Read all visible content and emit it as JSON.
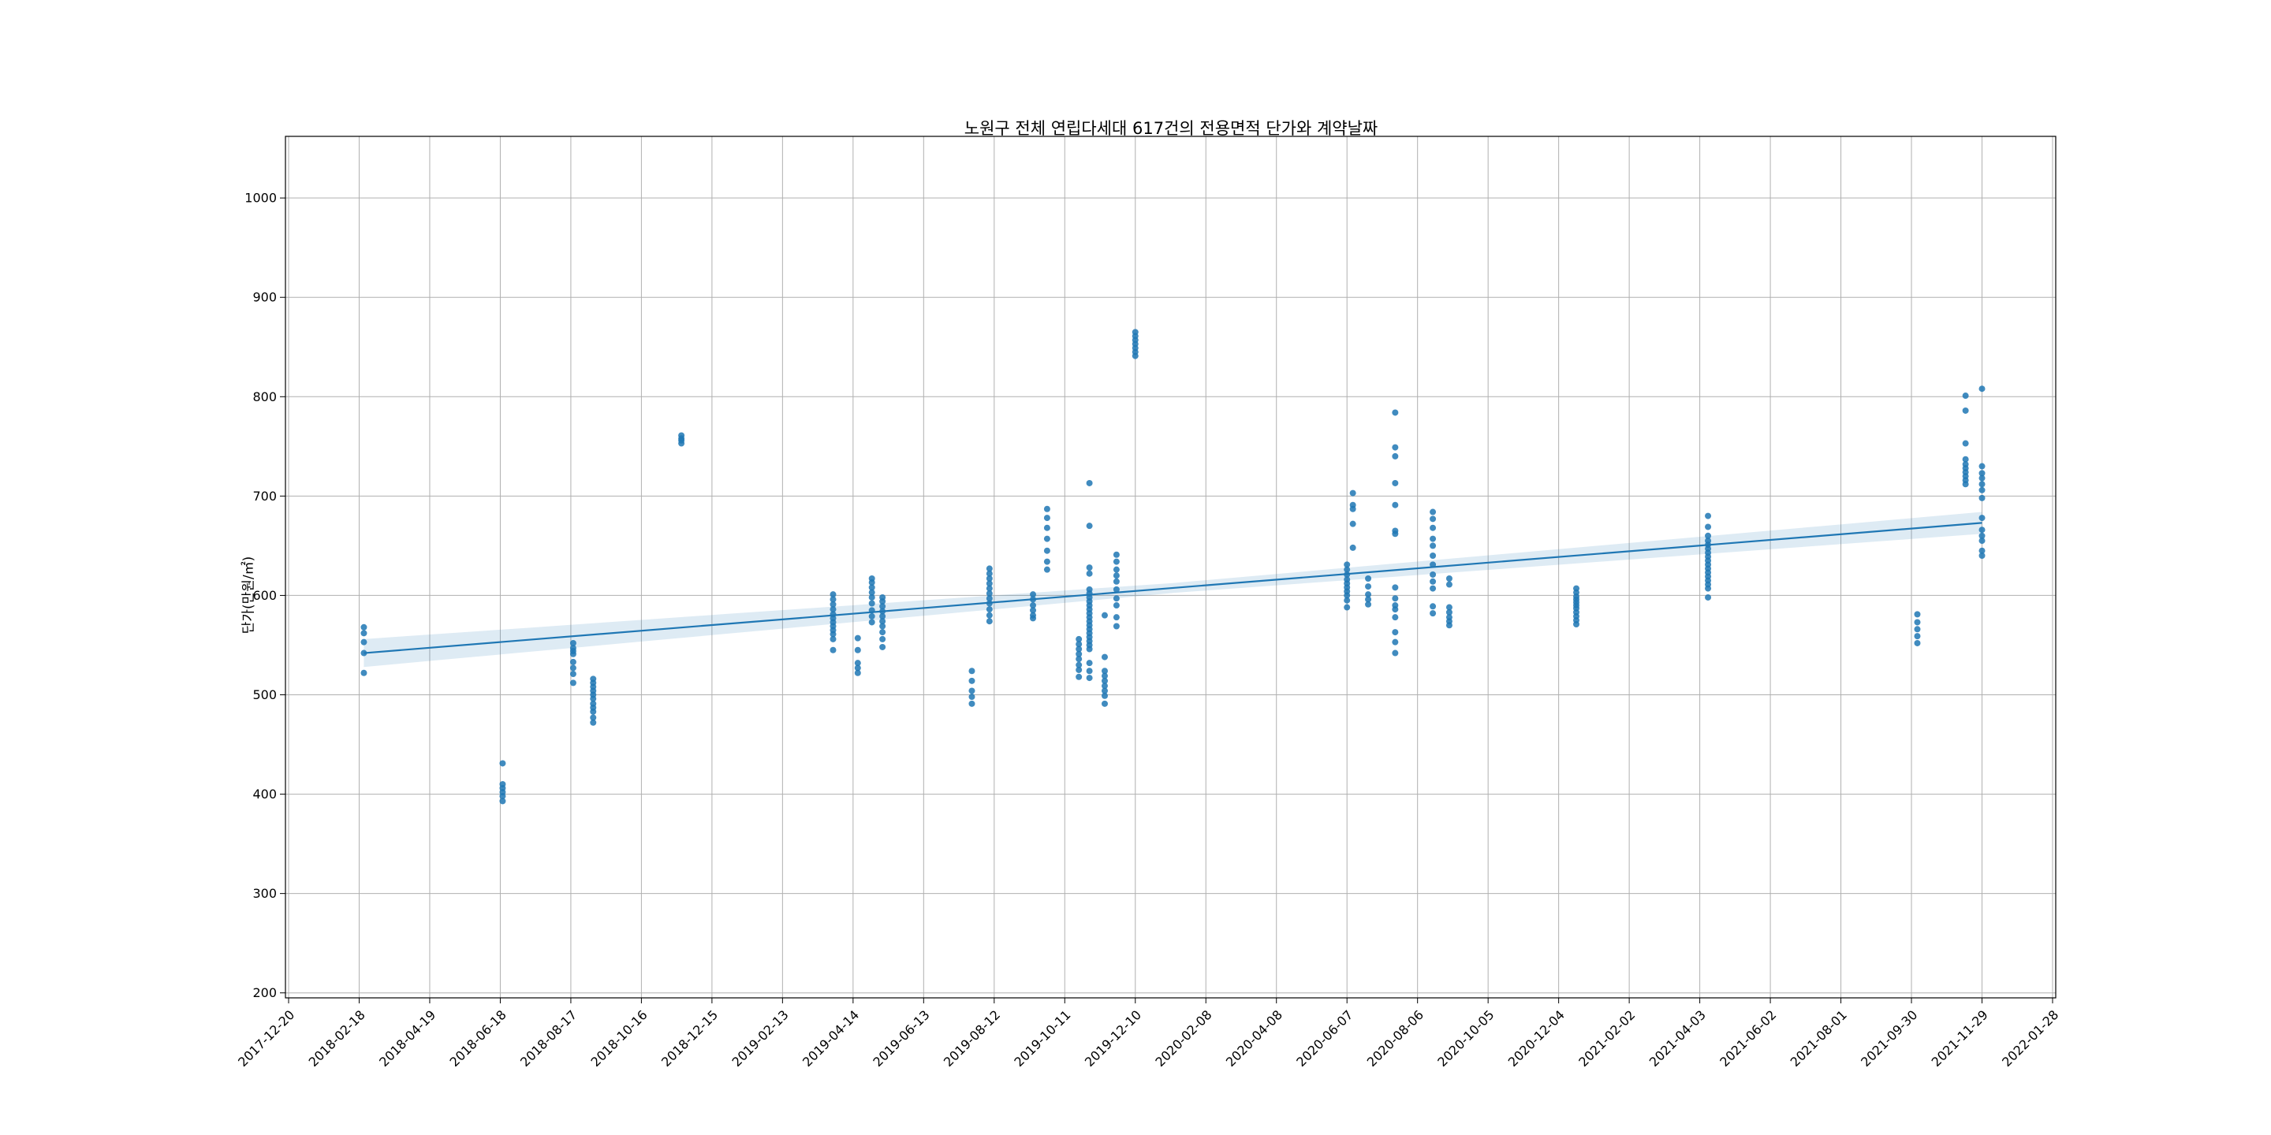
{
  "chart_data": {
    "type": "scatter",
    "title": "노원구 전체 연립다세대 617건의 전용면적 단가와 계약날짜",
    "xlabel": "",
    "ylabel": "단가(만원/㎡)",
    "x_type": "date",
    "xlim": [
      "2017-12-20",
      "2022-01-28"
    ],
    "ylim": [
      195,
      1062
    ],
    "x_ticks": [
      "2017-12-20",
      "2018-02-18",
      "2018-04-19",
      "2018-06-18",
      "2018-08-17",
      "2018-10-16",
      "2018-12-15",
      "2019-02-13",
      "2019-04-14",
      "2019-06-13",
      "2019-08-12",
      "2019-10-11",
      "2019-12-10",
      "2020-02-08",
      "2020-04-08",
      "2020-06-07",
      "2020-08-06",
      "2020-10-05",
      "2020-12-04",
      "2021-02-02",
      "2021-04-03",
      "2021-06-02",
      "2021-08-01",
      "2021-09-30",
      "2021-11-29",
      "2022-01-28"
    ],
    "y_ticks": [
      200,
      300,
      400,
      500,
      600,
      700,
      800,
      900,
      1000
    ],
    "grid": true,
    "colors": {
      "points": "#1f77b4",
      "line": "#1f77b4",
      "band": "#1f77b4"
    },
    "regression": {
      "start": {
        "x": "2018-02-22",
        "y": 542
      },
      "end": {
        "x": "2021-11-29",
        "y": 673
      },
      "ci_halfwidth_start": 14,
      "ci_halfwidth_mid": 5,
      "ci_halfwidth_end": 11
    },
    "clusters": [
      {
        "x": "2018-02-22",
        "values": [
          568,
          562,
          553,
          542,
          522
        ]
      },
      {
        "x": "2018-06-20",
        "values": [
          431,
          410,
          406,
          402,
          398,
          393
        ]
      },
      {
        "x": "2018-08-19",
        "values": [
          552,
          547,
          544,
          541,
          533,
          527,
          521,
          512
        ]
      },
      {
        "x": "2018-09-05",
        "values": [
          516,
          512,
          508,
          504,
          500,
          496,
          491,
          487,
          483,
          477,
          472
        ]
      },
      {
        "x": "2018-11-19",
        "values": [
          761,
          758,
          756,
          753
        ]
      },
      {
        "x": "2019-03-28",
        "values": [
          601,
          596,
          591,
          586,
          581,
          577,
          573,
          569,
          565,
          561,
          556,
          545
        ]
      },
      {
        "x": "2019-04-18",
        "values": [
          557,
          545,
          532,
          527,
          522
        ]
      },
      {
        "x": "2019-04-30",
        "values": [
          617,
          613,
          608,
          603,
          598,
          592,
          585,
          579,
          573
        ]
      },
      {
        "x": "2019-05-09",
        "values": [
          598,
          594,
          589,
          584,
          579,
          574,
          569,
          563,
          556,
          548
        ]
      },
      {
        "x": "2019-07-24",
        "values": [
          524,
          514,
          504,
          498,
          491
        ]
      },
      {
        "x": "2019-08-08",
        "values": [
          627,
          622,
          617,
          612,
          607,
          602,
          597,
          592,
          586,
          580,
          574
        ]
      },
      {
        "x": "2019-09-14",
        "values": [
          601,
          596,
          590,
          585,
          580,
          577
        ]
      },
      {
        "x": "2019-09-26",
        "values": [
          687,
          678,
          668,
          657,
          645,
          634,
          626
        ]
      },
      {
        "x": "2019-10-23",
        "values": [
          556,
          551,
          546,
          541,
          536,
          530,
          525,
          518
        ]
      },
      {
        "x": "2019-11-01",
        "values": [
          713,
          670,
          628,
          622,
          606,
          602,
          598,
          594,
          590,
          586,
          582,
          578,
          574,
          570,
          566,
          562,
          558,
          554,
          550,
          546,
          532,
          524,
          517
        ]
      },
      {
        "x": "2019-11-14",
        "values": [
          580,
          538,
          524,
          519,
          514,
          509,
          504,
          499,
          491
        ]
      },
      {
        "x": "2019-11-24",
        "values": [
          641,
          634,
          626,
          620,
          614,
          606,
          597,
          590,
          578,
          569
        ]
      },
      {
        "x": "2019-12-10",
        "values": [
          865,
          861,
          857,
          853,
          849,
          845,
          841
        ]
      },
      {
        "x": "2020-06-07",
        "values": [
          631,
          626,
          621,
          616,
          612,
          608,
          604,
          600,
          595,
          588
        ]
      },
      {
        "x": "2020-06-12",
        "values": [
          703,
          691,
          687,
          672,
          648
        ]
      },
      {
        "x": "2020-06-25",
        "values": [
          617,
          609,
          601,
          596,
          591
        ]
      },
      {
        "x": "2020-07-18",
        "values": [
          784,
          749,
          740,
          713,
          691,
          665,
          662,
          608,
          597,
          590,
          586,
          578,
          563,
          553,
          542
        ]
      },
      {
        "x": "2020-08-19",
        "values": [
          684,
          677,
          668,
          657,
          650,
          640,
          631,
          621,
          614,
          607,
          589,
          582
        ]
      },
      {
        "x": "2020-09-02",
        "values": [
          617,
          611,
          588,
          583,
          578,
          574,
          570
        ]
      },
      {
        "x": "2020-12-19",
        "values": [
          607,
          603,
          599,
          596,
          593,
          590,
          587,
          583,
          579,
          575,
          571
        ]
      },
      {
        "x": "2021-04-10",
        "values": [
          680,
          669,
          660,
          655,
          651,
          647,
          643,
          639,
          635,
          631,
          627,
          623,
          619,
          615,
          611,
          607,
          598
        ]
      },
      {
        "x": "2021-10-05",
        "values": [
          581,
          573,
          566,
          559,
          552
        ]
      },
      {
        "x": "2021-11-15",
        "values": [
          801,
          786,
          753,
          737,
          732,
          728,
          724,
          720,
          716,
          712
        ]
      },
      {
        "x": "2021-11-29",
        "values": [
          808,
          730,
          723,
          718,
          712,
          706,
          698,
          678,
          666,
          660,
          655,
          645,
          640
        ]
      }
    ]
  }
}
